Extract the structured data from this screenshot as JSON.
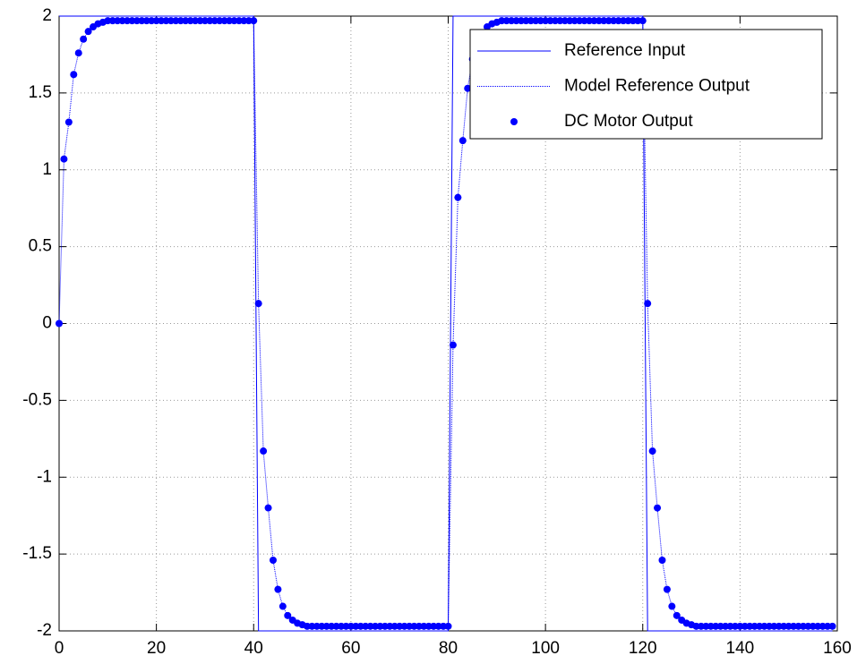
{
  "chart_data": {
    "type": "line",
    "xlim": [
      0,
      160
    ],
    "xticks": [
      0,
      20,
      40,
      60,
      80,
      100,
      120,
      140,
      160
    ],
    "ylim": [
      -2,
      2
    ],
    "yticks": [
      -2,
      -1.5,
      -1,
      -0.5,
      0,
      0.5,
      1,
      1.5,
      2
    ],
    "grid": true,
    "legend": "northeast",
    "series": [
      {
        "name": "Reference Input",
        "color": "#0000ff",
        "line_style": "solid",
        "marker": "none",
        "x": [
          0,
          40,
          41,
          80,
          81,
          120,
          121,
          159
        ],
        "values": [
          2,
          2,
          -2,
          -2,
          2,
          2,
          -2,
          -2
        ]
      },
      {
        "name": "Model Reference Output",
        "color": "#0000ff",
        "line_style": "dotted",
        "marker": "none",
        "x": [
          0,
          1,
          2,
          3,
          4,
          5,
          6,
          7,
          8,
          9,
          10,
          11,
          12,
          13,
          14,
          15,
          16,
          17,
          18,
          19,
          20,
          21,
          22,
          23,
          24,
          25,
          26,
          27,
          28,
          29,
          30,
          31,
          32,
          33,
          34,
          35,
          36,
          37,
          38,
          39,
          40,
          41,
          42,
          43,
          44,
          45,
          46,
          47,
          48,
          49,
          50,
          51,
          52,
          53,
          54,
          55,
          56,
          57,
          58,
          59,
          60,
          61,
          62,
          63,
          64,
          65,
          66,
          67,
          68,
          69,
          70,
          71,
          72,
          73,
          74,
          75,
          76,
          77,
          78,
          79,
          80,
          81,
          82,
          83,
          84,
          85,
          86,
          87,
          88,
          89,
          90,
          91,
          92,
          93,
          94,
          95,
          96,
          97,
          98,
          99,
          100,
          101,
          102,
          103,
          104,
          105,
          106,
          107,
          108,
          109,
          110,
          111,
          112,
          113,
          114,
          115,
          116,
          117,
          118,
          119,
          120,
          121,
          122,
          123,
          124,
          125,
          126,
          127,
          128,
          129,
          130,
          131,
          132,
          133,
          134,
          135,
          136,
          137,
          138,
          139,
          140,
          141,
          142,
          143,
          144,
          145,
          146,
          147,
          148,
          149,
          150,
          151,
          152,
          153,
          154,
          155,
          156,
          157,
          158,
          159
        ],
        "values": [
          0,
          1.07,
          1.31,
          1.62,
          1.76,
          1.85,
          1.9,
          1.93,
          1.95,
          1.96,
          1.97,
          1.97,
          1.97,
          1.97,
          1.97,
          1.97,
          1.97,
          1.97,
          1.97,
          1.97,
          1.97,
          1.97,
          1.97,
          1.97,
          1.97,
          1.97,
          1.97,
          1.97,
          1.97,
          1.97,
          1.97,
          1.97,
          1.97,
          1.97,
          1.97,
          1.97,
          1.97,
          1.97,
          1.97,
          1.97,
          1.97,
          0.13,
          -0.83,
          -1.2,
          -1.54,
          -1.73,
          -1.84,
          -1.9,
          -1.93,
          -1.95,
          -1.96,
          -1.97,
          -1.97,
          -1.97,
          -1.97,
          -1.97,
          -1.97,
          -1.97,
          -1.97,
          -1.97,
          -1.97,
          -1.97,
          -1.97,
          -1.97,
          -1.97,
          -1.97,
          -1.97,
          -1.97,
          -1.97,
          -1.97,
          -1.97,
          -1.97,
          -1.97,
          -1.97,
          -1.97,
          -1.97,
          -1.97,
          -1.97,
          -1.97,
          -1.97,
          -1.97,
          -0.14,
          0.82,
          1.19,
          1.53,
          1.72,
          1.83,
          1.89,
          1.93,
          1.95,
          1.96,
          1.97,
          1.97,
          1.97,
          1.97,
          1.97,
          1.97,
          1.97,
          1.97,
          1.97,
          1.97,
          1.97,
          1.97,
          1.97,
          1.97,
          1.97,
          1.97,
          1.97,
          1.97,
          1.97,
          1.97,
          1.97,
          1.97,
          1.97,
          1.97,
          1.97,
          1.97,
          1.97,
          1.97,
          1.97,
          1.97,
          0.13,
          -0.83,
          -1.2,
          -1.54,
          -1.73,
          -1.84,
          -1.9,
          -1.93,
          -1.95,
          -1.96,
          -1.97,
          -1.97,
          -1.97,
          -1.97,
          -1.97,
          -1.97,
          -1.97,
          -1.97,
          -1.97,
          -1.97,
          -1.97,
          -1.97,
          -1.97,
          -1.97,
          -1.97,
          -1.97,
          -1.97,
          -1.97,
          -1.97,
          -1.97,
          -1.97,
          -1.97,
          -1.97,
          -1.97,
          -1.97,
          -1.97,
          -1.97,
          -1.97,
          -1.97
        ]
      },
      {
        "name": "DC Motor Output",
        "color": "#0000ff",
        "line_style": "none",
        "marker": "o",
        "x": [
          0,
          1,
          2,
          3,
          4,
          5,
          6,
          7,
          8,
          9,
          10,
          11,
          12,
          13,
          14,
          15,
          16,
          17,
          18,
          19,
          20,
          21,
          22,
          23,
          24,
          25,
          26,
          27,
          28,
          29,
          30,
          31,
          32,
          33,
          34,
          35,
          36,
          37,
          38,
          39,
          40,
          41,
          42,
          43,
          44,
          45,
          46,
          47,
          48,
          49,
          50,
          51,
          52,
          53,
          54,
          55,
          56,
          57,
          58,
          59,
          60,
          61,
          62,
          63,
          64,
          65,
          66,
          67,
          68,
          69,
          70,
          71,
          72,
          73,
          74,
          75,
          76,
          77,
          78,
          79,
          80,
          81,
          82,
          83,
          84,
          85,
          86,
          87,
          88,
          89,
          90,
          91,
          92,
          93,
          94,
          95,
          96,
          97,
          98,
          99,
          100,
          101,
          102,
          103,
          104,
          105,
          106,
          107,
          108,
          109,
          110,
          111,
          112,
          113,
          114,
          115,
          116,
          117,
          118,
          119,
          120,
          121,
          122,
          123,
          124,
          125,
          126,
          127,
          128,
          129,
          130,
          131,
          132,
          133,
          134,
          135,
          136,
          137,
          138,
          139,
          140,
          141,
          142,
          143,
          144,
          145,
          146,
          147,
          148,
          149,
          150,
          151,
          152,
          153,
          154,
          155,
          156,
          157,
          158,
          159
        ],
        "values": [
          0,
          1.07,
          1.31,
          1.62,
          1.76,
          1.85,
          1.9,
          1.93,
          1.95,
          1.96,
          1.97,
          1.97,
          1.97,
          1.97,
          1.97,
          1.97,
          1.97,
          1.97,
          1.97,
          1.97,
          1.97,
          1.97,
          1.97,
          1.97,
          1.97,
          1.97,
          1.97,
          1.97,
          1.97,
          1.97,
          1.97,
          1.97,
          1.97,
          1.97,
          1.97,
          1.97,
          1.97,
          1.97,
          1.97,
          1.97,
          1.97,
          0.13,
          -0.83,
          -1.2,
          -1.54,
          -1.73,
          -1.84,
          -1.9,
          -1.93,
          -1.95,
          -1.96,
          -1.97,
          -1.97,
          -1.97,
          -1.97,
          -1.97,
          -1.97,
          -1.97,
          -1.97,
          -1.97,
          -1.97,
          -1.97,
          -1.97,
          -1.97,
          -1.97,
          -1.97,
          -1.97,
          -1.97,
          -1.97,
          -1.97,
          -1.97,
          -1.97,
          -1.97,
          -1.97,
          -1.97,
          -1.97,
          -1.97,
          -1.97,
          -1.97,
          -1.97,
          -1.97,
          -0.14,
          0.82,
          1.19,
          1.53,
          1.72,
          1.83,
          1.89,
          1.93,
          1.95,
          1.96,
          1.97,
          1.97,
          1.97,
          1.97,
          1.97,
          1.97,
          1.97,
          1.97,
          1.97,
          1.97,
          1.97,
          1.97,
          1.97,
          1.97,
          1.97,
          1.97,
          1.97,
          1.97,
          1.97,
          1.97,
          1.97,
          1.97,
          1.97,
          1.97,
          1.97,
          1.97,
          1.97,
          1.97,
          1.97,
          1.97,
          0.13,
          -0.83,
          -1.2,
          -1.54,
          -1.73,
          -1.84,
          -1.9,
          -1.93,
          -1.95,
          -1.96,
          -1.97,
          -1.97,
          -1.97,
          -1.97,
          -1.97,
          -1.97,
          -1.97,
          -1.97,
          -1.97,
          -1.97,
          -1.97,
          -1.97,
          -1.97,
          -1.97,
          -1.97,
          -1.97,
          -1.97,
          -1.97,
          -1.97,
          -1.97,
          -1.97,
          -1.97,
          -1.97,
          -1.97,
          -1.97,
          -1.97,
          -1.97,
          -1.97,
          -1.97
        ]
      }
    ]
  }
}
